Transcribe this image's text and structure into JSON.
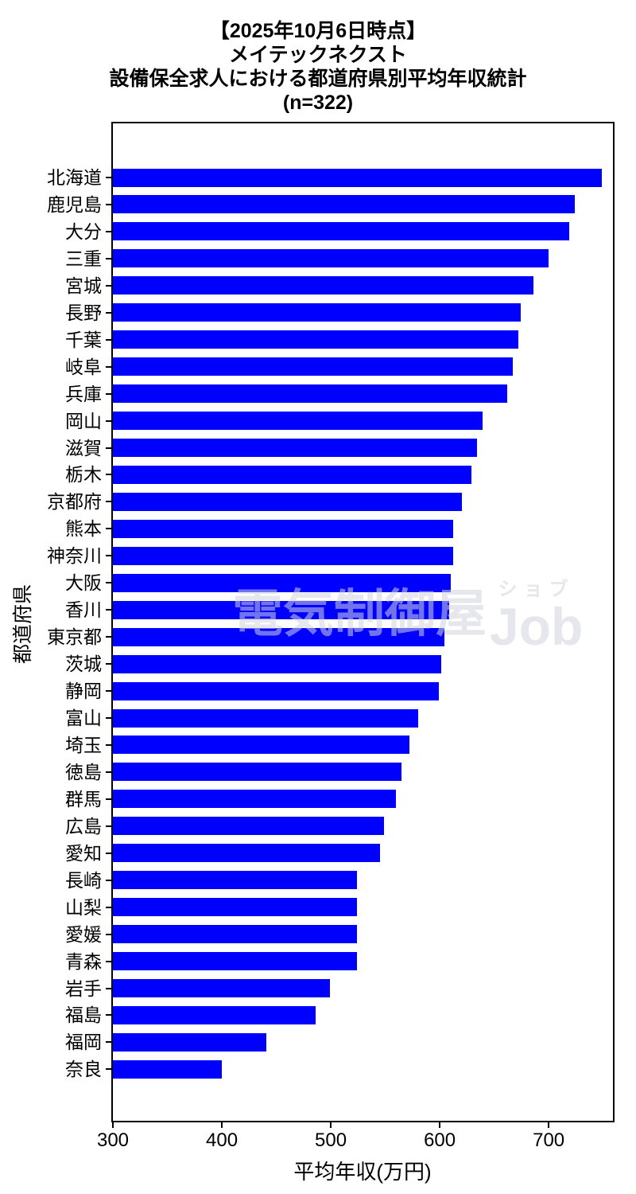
{
  "title": {
    "lines": [
      "【2025年10月6日時点】",
      "メイテックネクスト",
      "設備保全求人における都道府県別平均年収統計",
      "(n=322)"
    ]
  },
  "watermark": {
    "kanji": "電気制御屋",
    "katakana": "ショブ",
    "latin": "Job"
  },
  "chart_data": {
    "type": "bar",
    "orientation": "horizontal",
    "title": "【2025年10月6日時点】 メイテックネクスト 設備保全求人における都道府県別平均年収統計 (n=322)",
    "sample_size_note": "(n=322)",
    "xlabel": "平均年収(万円)",
    "ylabel": "都道府県",
    "xlim": [
      300,
      759
    ],
    "xticks": [
      300,
      400,
      500,
      600,
      700
    ],
    "grid": false,
    "bar_color": "#0000FF",
    "categories": [
      "北海道",
      "鹿児島",
      "大分",
      "三重",
      "宮城",
      "長野",
      "千葉",
      "岐阜",
      "兵庫",
      "岡山",
      "滋賀",
      "栃木",
      "京都府",
      "熊本",
      "神奈川",
      "大阪",
      "香川",
      "東京都",
      "茨城",
      "静岡",
      "富山",
      "埼玉",
      "徳島",
      "群馬",
      "広島",
      "愛知",
      "長崎",
      "山梨",
      "愛媛",
      "青森",
      "岩手",
      "福島",
      "福岡",
      "奈良"
    ],
    "values": [
      749,
      724,
      719,
      700,
      686,
      674,
      672,
      667,
      662,
      639,
      634,
      629,
      620,
      612,
      612,
      610,
      609,
      604,
      601,
      599,
      580,
      572,
      565,
      560,
      549,
      545,
      524,
      524,
      524,
      524,
      499,
      486,
      441,
      400
    ]
  }
}
